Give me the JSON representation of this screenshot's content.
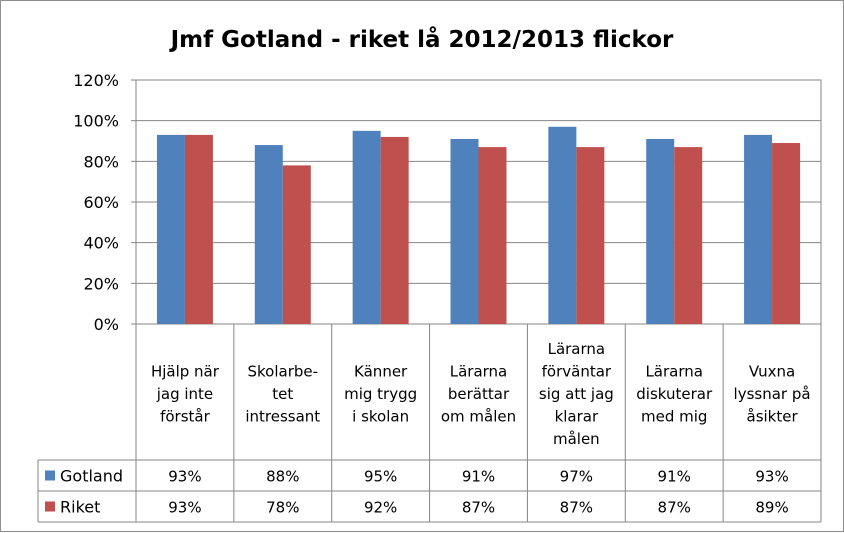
{
  "chart_data": {
    "type": "bar",
    "title": "Jmf Gotland - riket lå 2012/2013 flickor",
    "categories": [
      [
        "Hjälp när",
        "jag inte",
        "förstår"
      ],
      [
        "Skolarbe-",
        "tet",
        "intressant"
      ],
      [
        "Känner",
        "mig trygg",
        "i skolan"
      ],
      [
        "Lärarna",
        "berättar",
        "om målen"
      ],
      [
        "Lärarna",
        "förväntar",
        "sig att jag",
        "klarar",
        "målen"
      ],
      [
        "Lärarna",
        "diskuterar",
        "med mig"
      ],
      [
        "Vuxna",
        "lyssnar på",
        "åsikter"
      ]
    ],
    "series": [
      {
        "name": "Gotland",
        "color": "#4f81bd",
        "values": [
          0.93,
          0.88,
          0.95,
          0.91,
          0.97,
          0.91,
          0.93
        ],
        "labels": [
          "93%",
          "88%",
          "95%",
          "91%",
          "97%",
          "91%",
          "93%"
        ]
      },
      {
        "name": "Riket",
        "color": "#c0504d",
        "values": [
          0.93,
          0.78,
          0.92,
          0.87,
          0.87,
          0.87,
          0.89
        ],
        "labels": [
          "93%",
          "78%",
          "92%",
          "87%",
          "87%",
          "87%",
          "89%"
        ]
      }
    ],
    "yticks": [
      "0%",
      "20%",
      "40%",
      "60%",
      "80%",
      "100%",
      "120%"
    ],
    "ylim": [
      0,
      1.2
    ],
    "grid": true,
    "legend": "data-table"
  }
}
